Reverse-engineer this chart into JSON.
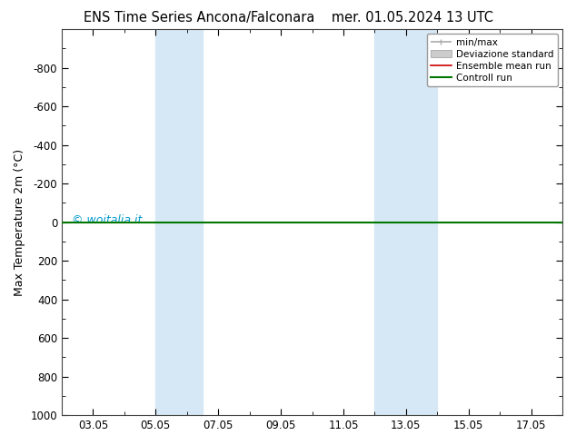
{
  "title_left": "ENS Time Series Ancona/Falconara",
  "title_right": "mer. 01.05.2024 13 UTC",
  "ylabel": "Max Temperature 2m (°C)",
  "ylim_bottom": 1000,
  "ylim_top": -1000,
  "yticks": [
    -800,
    -600,
    -400,
    -200,
    0,
    200,
    400,
    600,
    800,
    1000
  ],
  "xtick_labels": [
    "03.05",
    "05.05",
    "07.05",
    "09.05",
    "11.05",
    "13.05",
    "15.05",
    "17.05"
  ],
  "xtick_positions": [
    2,
    4,
    6,
    8,
    10,
    12,
    14,
    16
  ],
  "xmin": 1,
  "xmax": 17,
  "background_color": "#ffffff",
  "plot_bg_color": "#ffffff",
  "shaded_regions": [
    {
      "xmin": 4.0,
      "xmax": 5.5,
      "color": "#d6e8f5"
    },
    {
      "xmin": 11.0,
      "xmax": 13.0,
      "color": "#d6e8f5"
    }
  ],
  "flat_line_y": 0,
  "ensemble_mean_color": "#cc0000",
  "control_run_color": "#007700",
  "watermark": "© woitalia.it",
  "watermark_color": "#0099cc",
  "legend_items": [
    {
      "label": "min/max",
      "color": "#aaaaaa",
      "lw": 1.2
    },
    {
      "label": "Deviazione standard",
      "color": "#cccccc",
      "lw": 1.0
    },
    {
      "label": "Ensemble mean run",
      "color": "#cc0000",
      "lw": 1.2
    },
    {
      "label": "Controll run",
      "color": "#007700",
      "lw": 1.5
    }
  ],
  "title_fontsize": 10.5,
  "axis_label_fontsize": 9,
  "tick_fontsize": 8.5,
  "legend_fontsize": 7.5
}
